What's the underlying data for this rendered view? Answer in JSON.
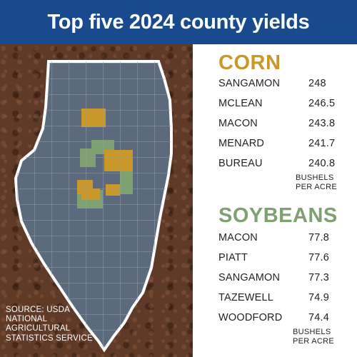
{
  "title": "Top five 2024 county yields",
  "colors": {
    "banner": "#1a4a8e",
    "corn": "#c9972a",
    "soybeans": "#7fa070",
    "county_fill": "#5b6b7d",
    "soil": "#5e3a27"
  },
  "source": "SOURCE: USDA NATIONAL AGRICULTURAL STATISTICS SERVICE",
  "corn": {
    "heading": "CORN",
    "unit": "BUSHELS PER ACRE",
    "rows": [
      {
        "county": "SANGAMON",
        "value": "248"
      },
      {
        "county": "MCLEAN",
        "value": "246.5"
      },
      {
        "county": "MACON",
        "value": "243.8"
      },
      {
        "county": "MENARD",
        "value": "241.7"
      },
      {
        "county": "BUREAU",
        "value": "240.8"
      }
    ]
  },
  "soybeans": {
    "heading": "SOYBEANS",
    "unit": "BUSHELS PER ACRE",
    "rows": [
      {
        "county": "MACON",
        "value": "77.8"
      },
      {
        "county": "PIATT",
        "value": "77.6"
      },
      {
        "county": "SANGAMON",
        "value": "77.3"
      },
      {
        "county": "TAZEWELL",
        "value": "74.9"
      },
      {
        "county": "WOODFORD",
        "value": "74.4"
      }
    ]
  }
}
